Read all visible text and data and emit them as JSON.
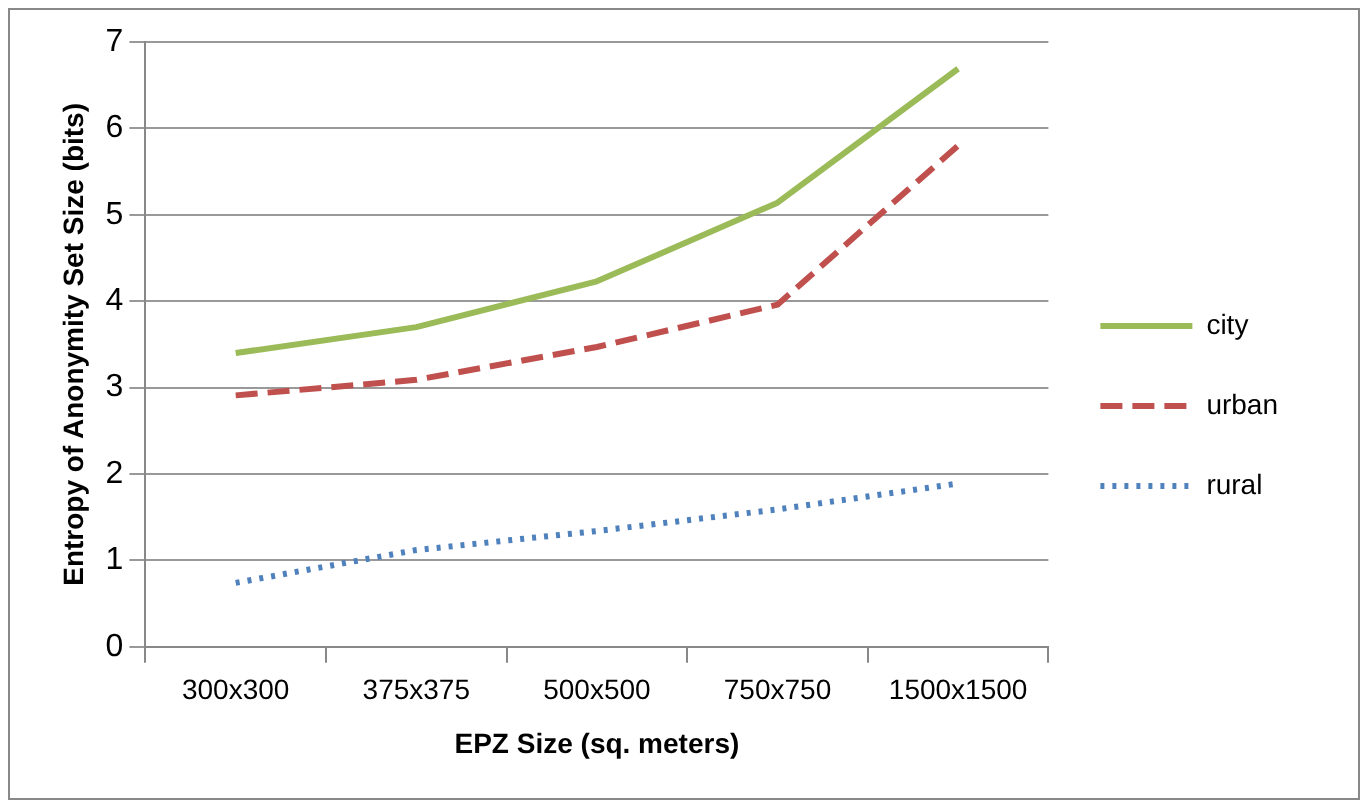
{
  "chart_data": {
    "type": "line",
    "xlabel": "EPZ Size (sq. meters)",
    "ylabel": "Entropy of Anonymity Set Size (bits)",
    "categories": [
      "300x300",
      "375x375",
      "500x500",
      "750x750",
      "1500x1500"
    ],
    "series": [
      {
        "name": "city",
        "color": "#9bbb59",
        "line_style": "solid",
        "values": [
          3.4,
          3.7,
          4.23,
          5.14,
          6.69
        ]
      },
      {
        "name": "urban",
        "color": "#c0504d",
        "line_style": "dashed",
        "values": [
          2.91,
          3.09,
          3.47,
          3.96,
          5.8
        ]
      },
      {
        "name": "rural",
        "color": "#4f81bd",
        "line_style": "dotted",
        "values": [
          0.74,
          1.12,
          1.34,
          1.59,
          1.89
        ]
      }
    ],
    "ylim": [
      0,
      7
    ],
    "yticks": [
      0,
      1,
      2,
      3,
      4,
      5,
      6,
      7
    ],
    "grid": "y",
    "legend": "right",
    "marker": "none"
  }
}
